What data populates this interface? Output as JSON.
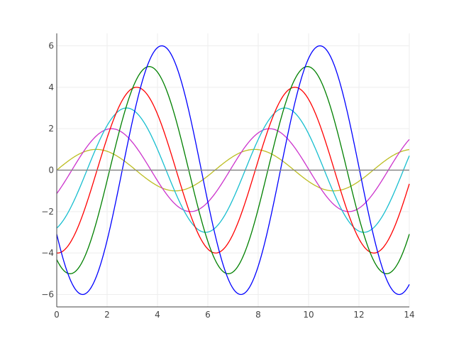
{
  "chart_data": {
    "type": "line",
    "title": "",
    "xlabel": "",
    "ylabel": "",
    "xlim": [
      0,
      14
    ],
    "ylim": [
      -6.6,
      6.6
    ],
    "x_ticks": [
      0,
      2,
      4,
      6,
      8,
      10,
      12,
      14
    ],
    "y_ticks": [
      -6,
      -4,
      -2,
      0,
      2,
      4,
      6
    ],
    "x_tick_labels": [
      "0",
      "2",
      "4",
      "6",
      "8",
      "10",
      "12",
      "14"
    ],
    "y_tick_labels": [
      "−6",
      "−4",
      "−2",
      "0",
      "2",
      "4",
      "6"
    ],
    "grid": true,
    "legend": "none",
    "zero_line_color": "#888888",
    "series": [
      {
        "color": "#bcbd22",
        "amplitude": 1,
        "phase": 0.0,
        "period": 6.283
      },
      {
        "color": "#cc33cc",
        "amplitude": 2,
        "phase": 0.6,
        "period": 6.283
      },
      {
        "color": "#17becf",
        "amplitude": 3,
        "phase": 1.2,
        "period": 6.283
      },
      {
        "color": "#ff0000",
        "amplitude": 4,
        "phase": 1.6,
        "period": 6.283
      },
      {
        "color": "#008000",
        "amplitude": 5,
        "phase": 2.1,
        "period": 6.283
      },
      {
        "color": "#0000ff",
        "amplitude": 6,
        "phase": 2.6,
        "period": 6.283
      }
    ]
  }
}
